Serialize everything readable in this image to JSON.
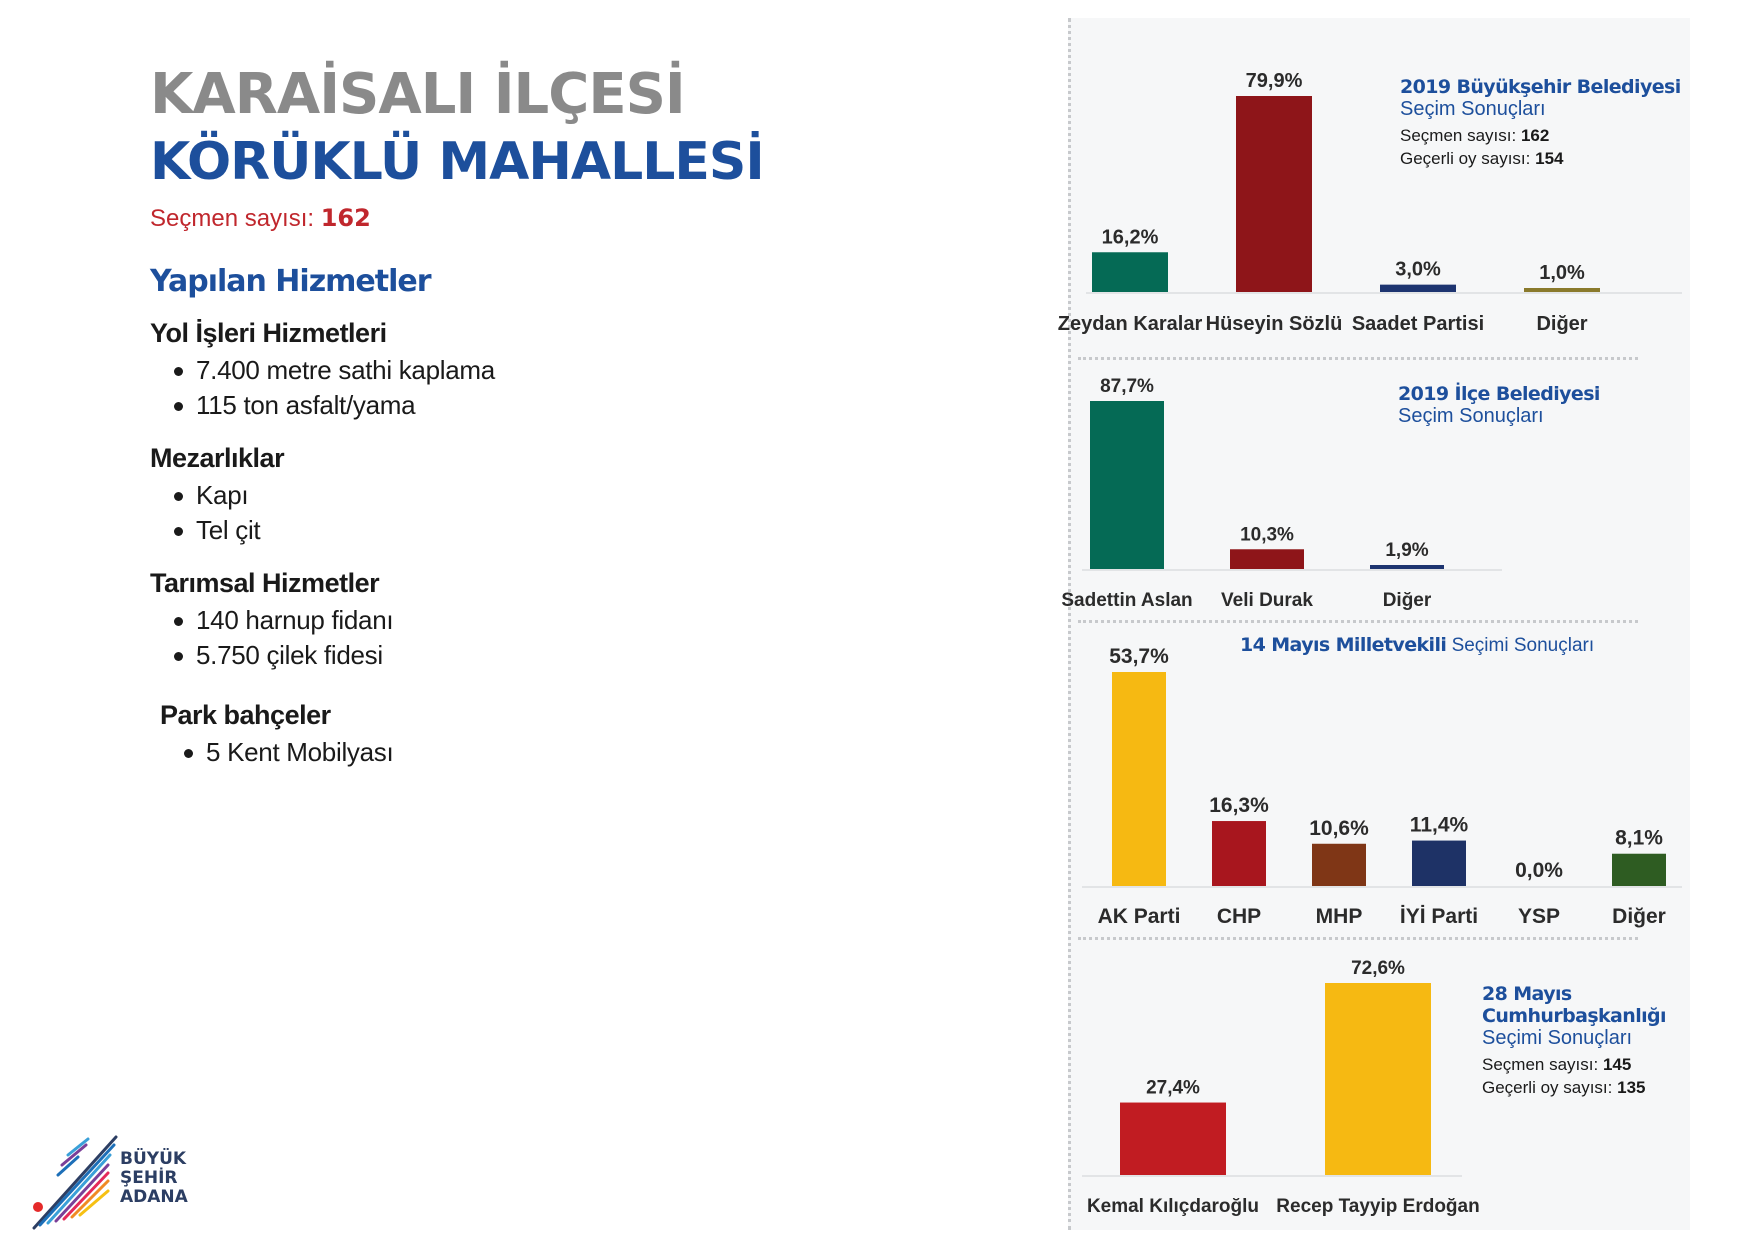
{
  "header": {
    "title_line1": "KARAİSALI İLÇESİ",
    "title_line2": "KÖRÜKLÜ MAHALLESİ",
    "voters_label": "Seçmen sayısı:",
    "voters_value": "162"
  },
  "services": {
    "heading": "Yapılan Hizmetler",
    "groups": [
      {
        "title": "Yol İşleri Hizmetleri",
        "items": [
          "7.400 metre sathi kaplama",
          "115 ton asfalt/yama"
        ]
      },
      {
        "title": "Mezarlıklar",
        "items": [
          "Kapı",
          "Tel çit"
        ]
      },
      {
        "title": "Tarımsal Hizmetler",
        "items": [
          "140 harnup fidanı",
          "5.750 çilek fidesi"
        ]
      },
      {
        "title": "Park bahçeler",
        "items": [
          "5 Kent Mobilyası"
        ]
      }
    ]
  },
  "logo": {
    "line1": "BÜYÜK",
    "line2": "ŞEHİR",
    "line3": "ADANA"
  },
  "panels": {
    "p1": {
      "title": "2019 Büyükşehir Belediyesi",
      "subtitle": "Seçim Sonuçları",
      "stat1_label": "Seçmen sayısı:",
      "stat1_value": "162",
      "stat2_label": "Geçerli oy sayısı:",
      "stat2_value": "154"
    },
    "p2": {
      "title": "2019 İlçe Belediyesi",
      "subtitle": "Seçim Sonuçları"
    },
    "p3": {
      "title_bold": "14 Mayıs Milletvekili",
      "title_rest": "Seçimi Sonuçları"
    },
    "p4": {
      "title1": "28 Mayıs",
      "title2": "Cumhurbaşkanlığı",
      "subtitle": "Seçimi Sonuçları",
      "stat1_label": "Seçmen sayısı:",
      "stat1_value": "145",
      "stat2_label": "Geçerli oy sayısı:",
      "stat2_value": "135"
    }
  },
  "chart_data": [
    {
      "type": "bar",
      "title": "2019 Büyükşehir Belediyesi Seçim Sonuçları",
      "categories": [
        "Zeydan Karalar",
        "Hüseyin Sözlü",
        "Saadet Partisi",
        "Diğer"
      ],
      "values": [
        16.2,
        79.9,
        3.0,
        1.0
      ],
      "labels": [
        "16,2%",
        "79,9%",
        "3,0%",
        "1,0%"
      ],
      "colors": [
        "#056a55",
        "#8e1519",
        "#1d3470",
        "#8a7a2c"
      ],
      "ylim": [
        0,
        79.9
      ]
    },
    {
      "type": "bar",
      "title": "2019 İlçe Belediyesi Seçim Sonuçları",
      "categories": [
        "Sadettin Aslan",
        "Veli Durak",
        "Diğer"
      ],
      "values": [
        87.7,
        10.3,
        1.9
      ],
      "labels": [
        "87,7%",
        "10,3%",
        "1,9%"
      ],
      "colors": [
        "#056a55",
        "#8e1519",
        "#1d3470"
      ],
      "ylim": [
        0,
        87.7
      ]
    },
    {
      "type": "bar",
      "title": "14 Mayıs Milletvekili Seçimi Sonuçları",
      "categories": [
        "AK Parti",
        "CHP",
        "MHP",
        "İYİ Parti",
        "YSP",
        "Diğer"
      ],
      "values": [
        53.7,
        16.3,
        10.6,
        11.4,
        0.0,
        8.1
      ],
      "labels": [
        "53,7%",
        "16,3%",
        "10,6%",
        "11,4%",
        "0,0%",
        "8,1%"
      ],
      "colors": [
        "#f6b912",
        "#a8161e",
        "#7f3616",
        "#1e3266",
        "#8a8a8a",
        "#2e5c22"
      ],
      "ylim": [
        0,
        53.7
      ]
    },
    {
      "type": "bar",
      "title": "28 Mayıs Cumhurbaşkanlığı Seçimi Sonuçları",
      "categories": [
        "Kemal Kılıçdaroğlu",
        "Recep Tayyip Erdoğan"
      ],
      "values": [
        27.4,
        72.6
      ],
      "labels": [
        "27,4%",
        "72,6%"
      ],
      "colors": [
        "#c11c22",
        "#f6b912"
      ],
      "ylim": [
        0,
        72.6
      ]
    }
  ]
}
